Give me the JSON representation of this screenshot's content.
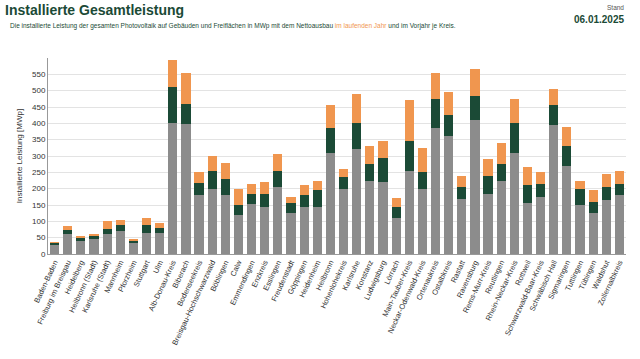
{
  "chart_data": {
    "type": "bar",
    "title": "Installierte Gesamtleistung",
    "subtitle": "Die installierte Leistung der gesamten Photovoltaik auf Gebäuden und Freiflächen in MWp mit dem Nettoausbau im laufenden Jahr und im Vorjahr je Kreis.",
    "date_label": "Stand",
    "date": "06.01.2025",
    "y_label": "Installierte Leistung [MWp]",
    "stacked": true,
    "grid": true,
    "categories": [
      "Baden-Baden",
      "Freiburg im Breisgau",
      "Heidelberg",
      "Heilbronn (Stadt)",
      "Karlsruhe (Stadt)",
      "Mannheim",
      "Pforzheim",
      "Stuttgart",
      "Ulm",
      "Alb-Donau-Kreis",
      "Biberach",
      "Bodenseekreis",
      "Breisgau-Hochschwarzwald",
      "Böblingen",
      "Calw",
      "Emmendingen",
      "Enzkreis",
      "Esslingen",
      "Freudenstadt",
      "Göppingen",
      "Heidenheim",
      "Heilbronn",
      "Hohenlohekreis",
      "Karlsruhe",
      "Konstanz",
      "Ludwigsburg",
      "Lörrach",
      "Main-Tauber-Kreis",
      "Neckar-Odenwald-Kreis",
      "Ortenaukreis",
      "Ostalbkreis",
      "Rastatt",
      "Ravensburg",
      "Rems-Murr-Kreis",
      "Reutlingen",
      "Rhein-Neckar-Kreis",
      "Rottweil",
      "Schwarzwald-Baar-Kreis",
      "Schwäbisch Hall",
      "Sigmaringen",
      "Tuttlingen",
      "Tübingen",
      "Waldshut",
      "Zollernalbkreis"
    ],
    "series": [
      {
        "color": "#8c8c8c",
        "values": [
          28,
          60,
          40,
          45,
          60,
          70,
          35,
          65,
          65,
          400,
          398,
          180,
          200,
          180,
          120,
          152,
          145,
          205,
          125,
          145,
          145,
          310,
          200,
          320,
          225,
          220,
          110,
          255,
          200,
          385,
          360,
          168,
          410,
          185,
          225,
          310,
          155,
          175,
          395,
          270,
          150,
          125,
          165,
          180
        ]
      },
      {
        "name": "im Vorjahr",
        "color": "#1b4a36",
        "values": [
          5,
          13,
          8,
          9,
          17,
          20,
          5,
          23,
          15,
          110,
          62,
          38,
          55,
          50,
          30,
          33,
          40,
          50,
          30,
          35,
          50,
          75,
          35,
          80,
          50,
          75,
          35,
          90,
          50,
          90,
          65,
          37,
          75,
          55,
          50,
          90,
          55,
          40,
          60,
          60,
          50,
          35,
          40,
          35
        ]
      },
      {
        "name": "im laufenden Jahr",
        "color": "#f0964f",
        "values": [
          3,
          12,
          7,
          8,
          23,
          15,
          5,
          22,
          15,
          85,
          95,
          32,
          45,
          50,
          50,
          30,
          35,
          50,
          20,
          30,
          30,
          70,
          25,
          90,
          55,
          50,
          25,
          125,
          75,
          80,
          70,
          35,
          80,
          50,
          65,
          75,
          55,
          35,
          50,
          60,
          25,
          35,
          40,
          40
        ]
      }
    ],
    "ylim": [
      0,
      600
    ],
    "yticks": [
      0,
      50,
      100,
      150,
      200,
      250,
      300,
      350,
      400,
      450,
      500,
      550
    ]
  }
}
